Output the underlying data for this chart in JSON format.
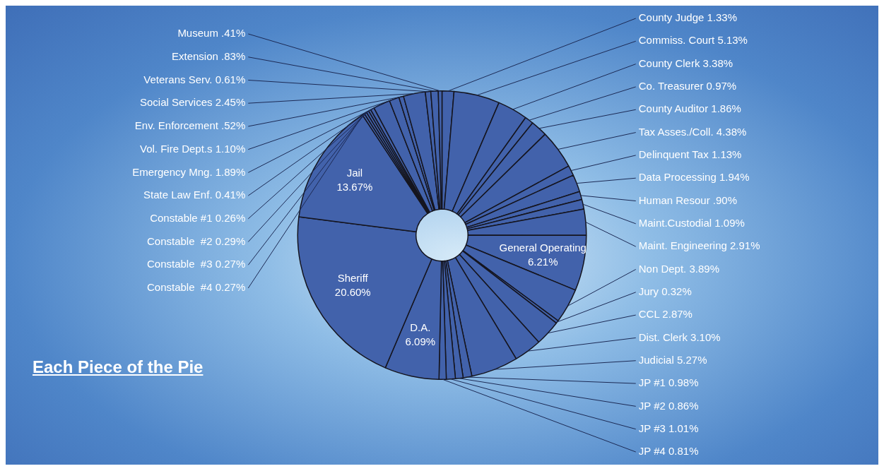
{
  "chart_data": {
    "type": "donut",
    "title": "Each Piece of the Pie",
    "categories": [
      "County Judge",
      "Commiss. Court",
      "County Clerk",
      "Co. Treasurer",
      "County Auditor",
      "Tax Asses./Coll.",
      "Delinquent Tax",
      "Data Processing",
      "Human Resour",
      "Maint.Custodial",
      "Maint. Engineering",
      "General Operating",
      "Non Dept.",
      "Jury",
      "CCL",
      "Dist. Clerk",
      "Judicial",
      "JP #1",
      "JP #2",
      "JP #3",
      "JP #4",
      "D.A.",
      "Sheriff",
      "Jail",
      "Constable  #4",
      "Constable  #3",
      "Constable  #2",
      "Constable #1",
      "State Law Enf.",
      "Emergency Mng.",
      "Vol. Fire Dept.s",
      "Env. Enforcement",
      "Social Services",
      "Veterans Serv.",
      "Extension",
      "Museum"
    ],
    "values": [
      1.33,
      5.13,
      3.38,
      0.97,
      1.86,
      4.38,
      1.13,
      1.94,
      0.9,
      1.09,
      2.91,
      6.21,
      3.89,
      0.32,
      2.87,
      3.1,
      5.27,
      0.98,
      0.86,
      1.01,
      0.81,
      6.09,
      20.6,
      13.67,
      0.27,
      0.27,
      0.29,
      0.26,
      0.41,
      1.89,
      1.1,
      0.52,
      2.45,
      0.61,
      0.83,
      0.41
    ],
    "value_labels": [
      "1.33%",
      "5.13%",
      "3.38%",
      "0.97%",
      "1.86%",
      "4.38%",
      "1.13%",
      "1.94%",
      ".90%",
      "1.09%",
      "2.91%",
      "6.21%",
      "3.89%",
      "0.32%",
      "2.87%",
      "3.10%",
      "5.27%",
      "0.98%",
      "0.86%",
      "1.01%",
      "0.81%",
      "6.09%",
      "20.60%",
      "13.67%",
      "0.27%",
      "0.27%",
      "0.29%",
      "0.26%",
      "0.41%",
      "1.89%",
      "1.10%",
      ".52%",
      "2.45%",
      "0.61%",
      ".83%",
      ".41%"
    ],
    "colors": [
      "#4262ab",
      "#4262ab",
      "#4262ab",
      "#4262ab",
      "#4262ab",
      "#4262ab",
      "#4262ab",
      "#4262ab",
      "#4262ab",
      "#4262ab",
      "#4262ab",
      "#4262ab",
      "#4262ab",
      "#4262ab",
      "#4262ab",
      "#4262ab",
      "#4262ab",
      "#4262ab",
      "#4262ab",
      "#4262ab",
      "#4262ab",
      "#4262ab",
      "#4262ab",
      "#4262ab",
      "#4262ab",
      "#4262ab",
      "#4262ab",
      "#4262ab",
      "#4262ab",
      "#4262ab",
      "#4262ab",
      "#4262ab",
      "#4262ab",
      "#4262ab",
      "#4262ab",
      "#4262ab"
    ],
    "legend": false
  }
}
